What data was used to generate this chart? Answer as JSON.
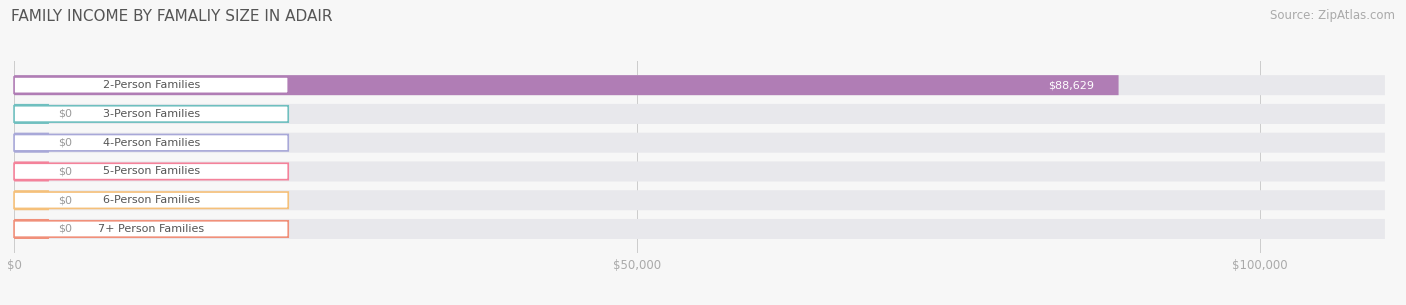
{
  "title": "FAMILY INCOME BY FAMALIY SIZE IN ADAIR",
  "source": "Source: ZipAtlas.com",
  "categories": [
    "2-Person Families",
    "3-Person Families",
    "4-Person Families",
    "5-Person Families",
    "6-Person Families",
    "7+ Person Families"
  ],
  "values": [
    88629,
    0,
    0,
    0,
    0,
    0
  ],
  "bar_colors": [
    "#b07db5",
    "#6fbfbf",
    "#a8a8d8",
    "#f4829a",
    "#f5c07a",
    "#f0907a"
  ],
  "xmax": 110000,
  "xticks": [
    0,
    50000,
    100000
  ],
  "xticklabels": [
    "$0",
    "$50,000",
    "$100,000"
  ],
  "background_color": "#f7f7f7",
  "title_fontsize": 11,
  "source_fontsize": 8.5,
  "label_fontsize": 8,
  "value_fontsize": 8
}
